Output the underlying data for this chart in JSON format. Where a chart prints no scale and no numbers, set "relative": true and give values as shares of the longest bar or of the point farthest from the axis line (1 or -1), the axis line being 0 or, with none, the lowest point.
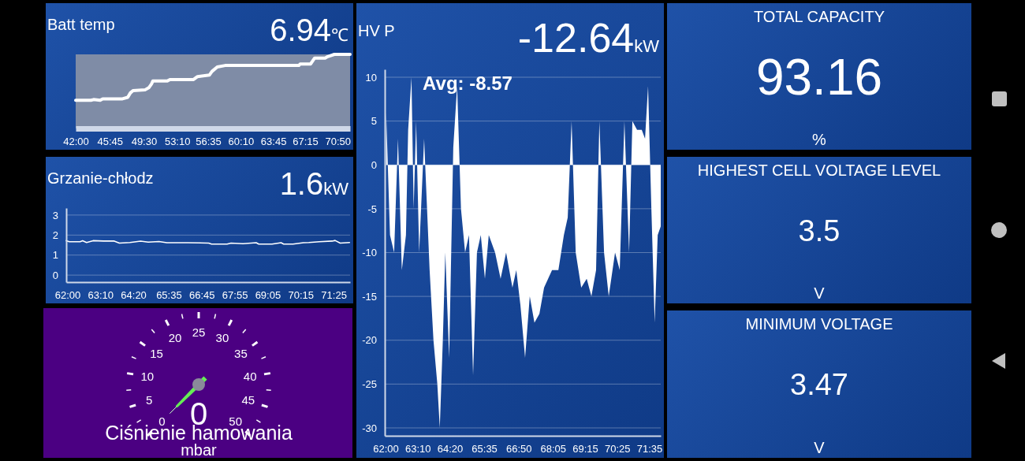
{
  "chart_data": [
    {
      "type": "line",
      "title": "Batt temp",
      "annotations": [
        "6.94",
        "℃"
      ],
      "relative": true,
      "tick_labels": "x",
      "color": "#ffffff",
      "x": [
        42.0,
        43.68,
        43.97,
        44.69,
        44.98,
        47.15,
        47.73,
        48.02,
        48.31,
        49.62,
        50.05,
        50.34,
        50.49,
        52.08,
        52.37,
        54.97,
        55.41,
        56.71,
        57.0,
        57.58,
        58.45,
        66.56,
        66.7,
        67.86,
        68.3,
        69.45,
        69.74,
        70.47,
        72.2
      ],
      "values": [
        0.38,
        0.38,
        0.39,
        0.38,
        0.4,
        0.4,
        0.42,
        0.48,
        0.51,
        0.52,
        0.55,
        0.6,
        0.64,
        0.64,
        0.66,
        0.66,
        0.7,
        0.72,
        0.77,
        0.83,
        0.85,
        0.85,
        0.87,
        0.87,
        0.95,
        0.95,
        0.97,
        1,
        1
      ],
      "xlim": [
        42,
        72.2
      ],
      "xticks": [
        {
          "value": 42,
          "label": "42:00"
        },
        {
          "value": 45.75,
          "label": "45:45"
        },
        {
          "value": 49.5,
          "label": "49:30"
        },
        {
          "value": 53.167,
          "label": "53:10"
        },
        {
          "value": 56.583,
          "label": "56:35"
        },
        {
          "value": 60.167,
          "label": "60:10"
        },
        {
          "value": 63.75,
          "label": "63:45"
        },
        {
          "value": 67.25,
          "label": "67:15"
        },
        {
          "value": 70.833,
          "label": "70:50"
        }
      ]
    },
    {
      "type": "line",
      "title": "Grzanie-chłodz",
      "annotations": [
        "1.6",
        "kW"
      ],
      "grid": "y",
      "color": "#ffffff",
      "x": [
        61.96,
        62.07,
        62.45,
        62.54,
        62.68,
        62.91,
        63.28,
        63.66,
        63.84,
        64.21,
        64.59,
        64.86,
        65.24,
        65.52,
        66.26,
        67.0,
        67.1,
        67.65,
        67.79,
        68.21,
        68.68,
        68.77,
        69.24,
        69.56,
        69.65,
        69.98,
        70.35,
        70.54,
        70.91,
        71.37,
        71.47,
        71.65,
        71.98
      ],
      "values": [
        1.72,
        1.67,
        1.67,
        1.72,
        1.63,
        1.72,
        1.7,
        1.7,
        1.6,
        1.63,
        1.7,
        1.65,
        1.68,
        1.62,
        1.62,
        1.6,
        1.55,
        1.55,
        1.6,
        1.57,
        1.62,
        1.55,
        1.55,
        1.62,
        1.55,
        1.55,
        1.62,
        1.63,
        1.67,
        1.7,
        1.73,
        1.6,
        1.63
      ],
      "xlim": [
        61.96,
        72.0
      ],
      "ylim": [
        -0.35,
        3.35
      ],
      "yticks": [
        0,
        1,
        2,
        3
      ],
      "xticks": [
        {
          "value": 62,
          "label": "62:00"
        },
        {
          "value": 63.167,
          "label": "63:10"
        },
        {
          "value": 64.333,
          "label": "64:20"
        },
        {
          "value": 65.583,
          "label": "65:35"
        },
        {
          "value": 66.75,
          "label": "66:45"
        },
        {
          "value": 67.917,
          "label": "67:55"
        },
        {
          "value": 69.083,
          "label": "69:05"
        },
        {
          "value": 70.25,
          "label": "70:15"
        },
        {
          "value": 71.417,
          "label": "71:25"
        }
      ]
    },
    {
      "type": "other",
      "title": "Ciśnienie hamowania",
      "annotations": [
        "0",
        "5",
        "10",
        "15",
        "20",
        "25",
        "30",
        "35",
        "40",
        "45",
        "50",
        "mbar"
      ],
      "values": [
        0
      ],
      "data_labels": true
    },
    {
      "type": "area",
      "title": "HV P",
      "annotations": [
        "-12.64",
        "kW",
        "Avg: -8.57"
      ],
      "grid": "y",
      "color": "#ffffff",
      "x": [
        62.02,
        62.16,
        62.31,
        62.45,
        62.59,
        62.74,
        62.82,
        62.94,
        63.02,
        63.11,
        63.22,
        63.4,
        63.6,
        63.74,
        63.88,
        63.97,
        64.08,
        64.17,
        64.31,
        64.46,
        64.6,
        64.74,
        64.89,
        65.03,
        65.18,
        65.32,
        65.46,
        65.61,
        65.75,
        65.98,
        66.18,
        66.38,
        66.61,
        66.75,
        66.9,
        67.07,
        67.24,
        67.41,
        67.59,
        67.76,
        68.05,
        68.28,
        68.48,
        68.62,
        68.76,
        68.91,
        69.11,
        69.31,
        69.48,
        69.65,
        69.77,
        69.94,
        70.11,
        70.34,
        70.51,
        70.68,
        70.85,
        70.97,
        71.14,
        71.31,
        71.43,
        71.54,
        71.66,
        71.78,
        71.89,
        72.0
      ],
      "values": [
        6,
        -8,
        -10,
        3,
        -12,
        -8,
        4,
        10,
        -5,
        5,
        -10,
        3,
        -12,
        -20,
        -25,
        -30,
        -20,
        -10,
        -22,
        2,
        9,
        -5,
        -10,
        -8,
        -24,
        -10,
        -8,
        -13,
        -8,
        -10,
        -13,
        -10,
        -14,
        -12,
        -16,
        -22,
        -15,
        -18,
        -17,
        -14,
        -12,
        -12,
        -8,
        -6,
        5,
        -10,
        -14,
        -13,
        -15,
        -12,
        5,
        -10,
        -15,
        -10,
        -12,
        5,
        -10,
        5,
        4,
        4,
        3,
        9,
        -5,
        -18,
        -8,
        -7
      ],
      "xlim": [
        61.97,
        72.0
      ],
      "ylim": [
        -30.9,
        10.9
      ],
      "yticks": [
        -30,
        -25,
        -20,
        -15,
        -10,
        -5,
        0,
        5,
        10
      ],
      "xticks": [
        {
          "value": 62,
          "label": "62:00"
        },
        {
          "value": 63.167,
          "label": "63:10"
        },
        {
          "value": 64.333,
          "label": "64:20"
        },
        {
          "value": 65.583,
          "label": "65:35"
        },
        {
          "value": 66.833,
          "label": "66:50"
        },
        {
          "value": 68.083,
          "label": "68:05"
        },
        {
          "value": 69.25,
          "label": "69:15"
        },
        {
          "value": 70.417,
          "label": "70:25"
        },
        {
          "value": 71.583,
          "label": "71:35"
        }
      ]
    },
    {
      "type": "other",
      "title": "TOTAL CAPACITY",
      "values": [
        93.16
      ],
      "data_labels": true,
      "annotations": [
        "%"
      ]
    },
    {
      "type": "other",
      "title": "HIGHEST CELL VOLTAGE LEVEL",
      "values": [
        3.5
      ],
      "data_labels": true,
      "annotations": [
        "V"
      ]
    },
    {
      "type": "other",
      "title": "MINIMUM VOLTAGE",
      "values": [
        3.47
      ],
      "data_labels": true,
      "annotations": [
        "V"
      ]
    }
  ]
}
